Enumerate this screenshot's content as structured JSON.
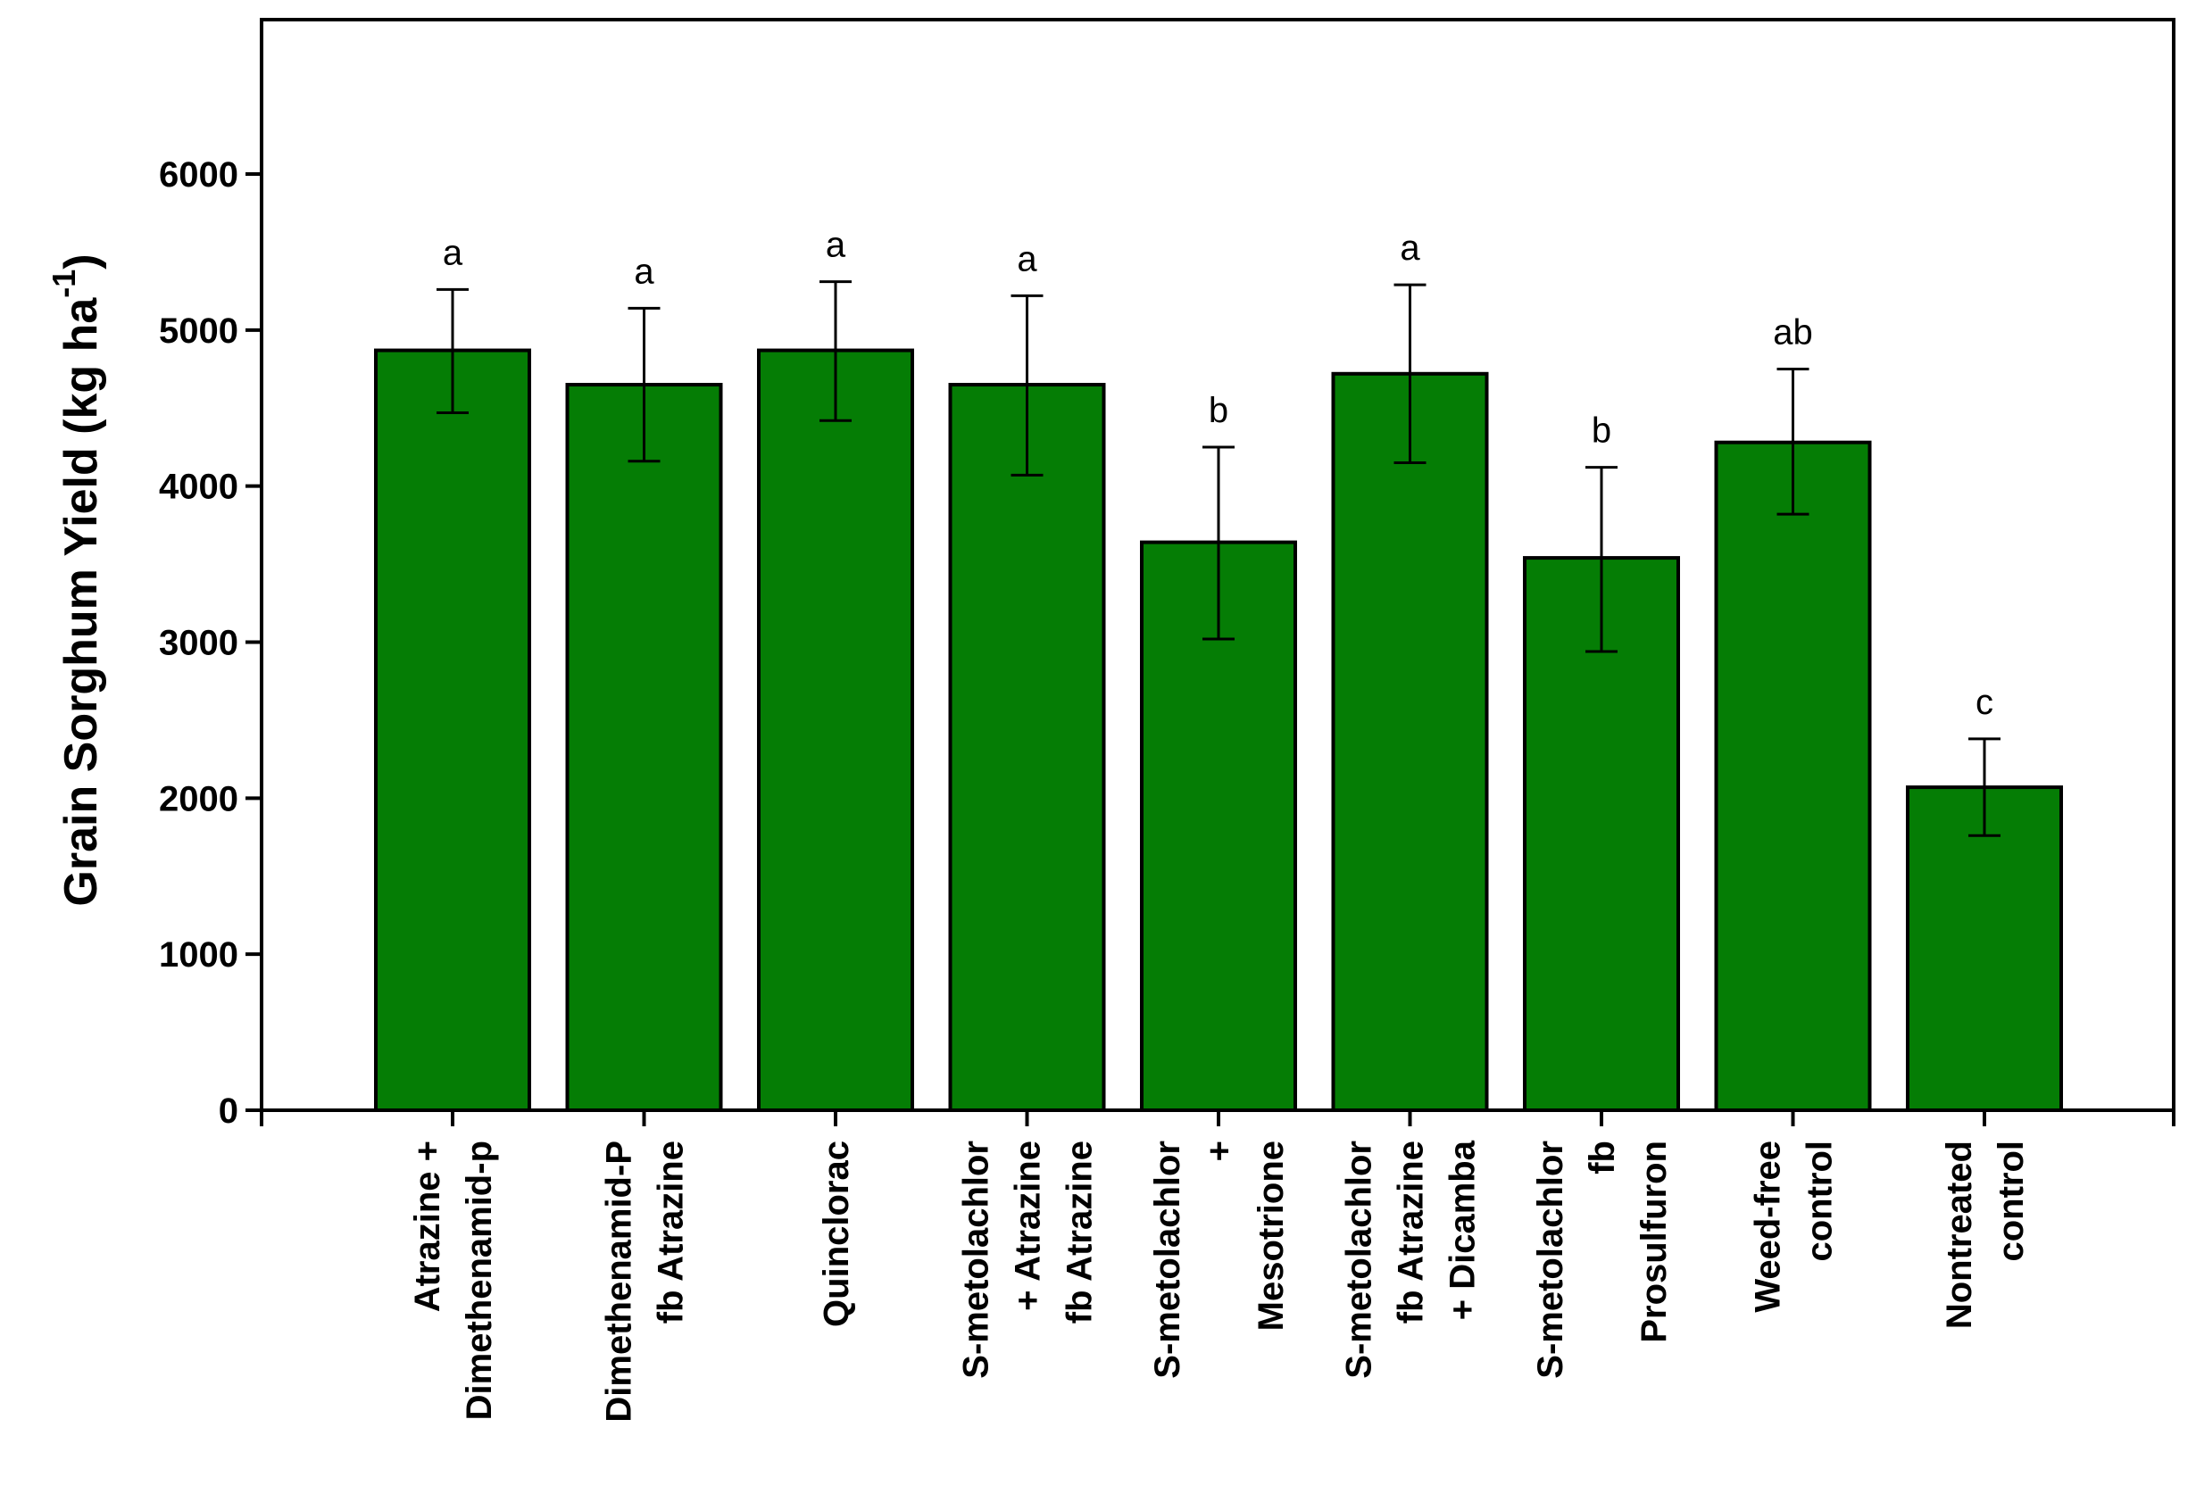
{
  "chart_data": {
    "type": "bar",
    "title": "",
    "xlabel": "",
    "ylabel": {
      "main": "Grain Sorghum Yield (kg ha",
      "superscript": "-1",
      "close": ")"
    },
    "ylim": [
      0,
      7000
    ],
    "yticks": [
      "0",
      "1000",
      "2000",
      "3000",
      "4000",
      "5000",
      "6000"
    ],
    "grid": false,
    "legend": "none",
    "bar_color": "#057d05",
    "categories": [
      [
        "Atrazine +",
        "Dimethenamid-p"
      ],
      [
        "Dimethenamid-P",
        "fb Atrazine"
      ],
      [
        "Quinclorac"
      ],
      [
        "S-metolachlor",
        "+ Atrazine",
        "fb Atrazine"
      ],
      [
        "S-metolachlor",
        "+",
        "Mesotrione"
      ],
      [
        "S-metolachlor",
        "fb Atrazine",
        "+ Dicamba"
      ],
      [
        "S-metolachlor",
        "fb",
        "Prosulfuron"
      ],
      [
        "Weed-free",
        "control"
      ],
      [
        "Nontreated",
        "control"
      ]
    ],
    "values": [
      4870,
      4650,
      4870,
      4650,
      3640,
      4720,
      3540,
      4280,
      2070
    ],
    "error_upper": [
      5260,
      5140,
      5310,
      5220,
      4250,
      5290,
      4120,
      4750,
      2380
    ],
    "error_lower": [
      4470,
      4160,
      4420,
      4070,
      3020,
      4150,
      2940,
      3820,
      1760
    ],
    "significance": [
      "a",
      "a",
      "a",
      "a",
      "b",
      "a",
      "b",
      "ab",
      "c"
    ]
  }
}
